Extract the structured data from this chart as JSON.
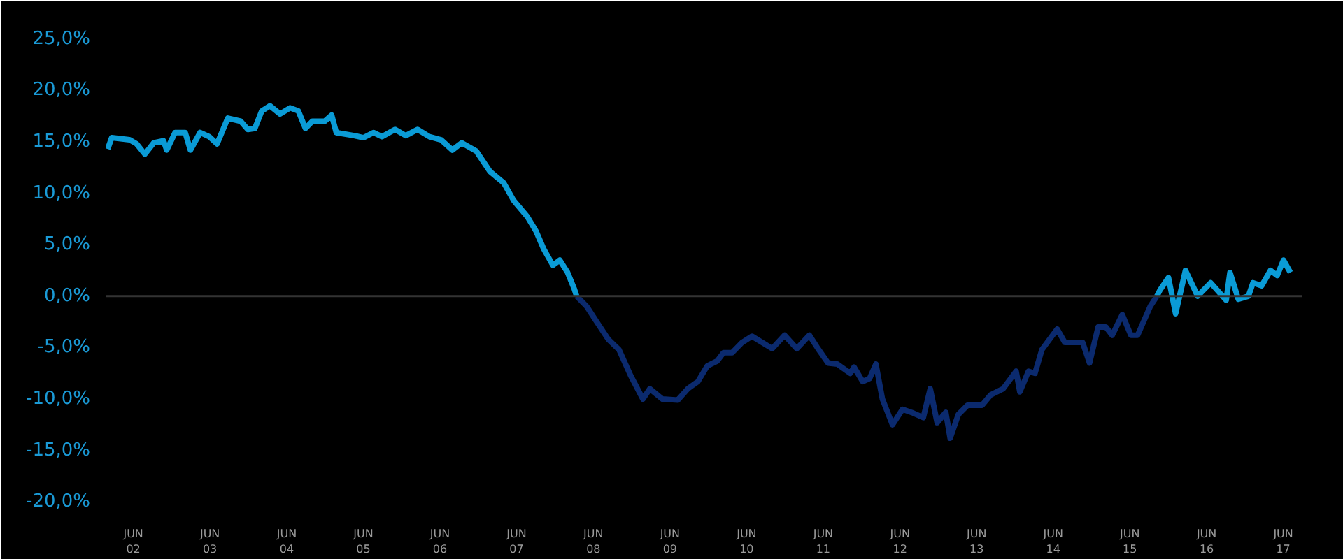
{
  "chart_data": {
    "type": "line",
    "xlim": [
      "2002-01-20",
      "2017-08-28"
    ],
    "ylim": [
      -21,
      26
    ],
    "xticks": [
      {
        "value": "2002-06",
        "label": "JUN\n02"
      },
      {
        "value": "2003-06",
        "label": "JUN\n03"
      },
      {
        "value": "2004-06",
        "label": "JUN\n04"
      },
      {
        "value": "2005-06",
        "label": "JUN\n05"
      },
      {
        "value": "2006-06",
        "label": "JUN\n06"
      },
      {
        "value": "2007-06",
        "label": "JUN\n07"
      },
      {
        "value": "2008-06",
        "label": "JUN\n08"
      },
      {
        "value": "2009-06",
        "label": "JUN\n09"
      },
      {
        "value": "2010-06",
        "label": "JUN\n10"
      },
      {
        "value": "2011-06",
        "label": "JUN\n11"
      },
      {
        "value": "2012-06",
        "label": "JUN\n12"
      },
      {
        "value": "2013-06",
        "label": "JUN\n13"
      },
      {
        "value": "2014-06",
        "label": "JUN\n14"
      },
      {
        "value": "2015-06",
        "label": "JUN\n15"
      },
      {
        "value": "2016-06",
        "label": "JUN\n16"
      },
      {
        "value": "2017-06",
        "label": "JUN\n17"
      }
    ],
    "yticks": [
      {
        "value": -20,
        "label": "-20,0%"
      },
      {
        "value": -15,
        "label": "-15,0%"
      },
      {
        "value": -10,
        "label": "-10,0%"
      },
      {
        "value": -5,
        "label": "-5,0%"
      },
      {
        "value": 0,
        "label": "0,0%"
      },
      {
        "value": 5,
        "label": "5,0%"
      },
      {
        "value": 10,
        "label": "10,0%"
      },
      {
        "value": 15,
        "label": "15,0%"
      },
      {
        "value": 20,
        "label": "20,0%"
      },
      {
        "value": 25,
        "label": "25,0%"
      }
    ],
    "grid": false,
    "line_style": "solid",
    "ref_lines": [
      {
        "axis": "y",
        "value": 0,
        "color": "#333333"
      }
    ],
    "series": [
      {
        "color": "#0b2a6e",
        "x": [
          "2008-03-13",
          "2008-04-30",
          "2008-06-17",
          "2008-08-11",
          "2008-10-01",
          "2008-11-25",
          "2009-01-23",
          "2009-02-25",
          "2009-04-26",
          "2009-07-08",
          "2009-08-25",
          "2009-10-12",
          "2009-11-25",
          "2010-01-12",
          "2010-02-11",
          "2010-03-24",
          "2010-05-11",
          "2010-06-27",
          "2010-10-01",
          "2010-11-29",
          "2011-01-26",
          "2011-03-27",
          "2011-05-07",
          "2011-06-24",
          "2011-08-07",
          "2011-10-08",
          "2011-10-26",
          "2011-12-06",
          "2012-01-08",
          "2012-02-07",
          "2012-03-09",
          "2012-04-26",
          "2012-06-13",
          "2012-07-26",
          "2012-09-20",
          "2012-10-23",
          "2012-11-25",
          "2013-01-05",
          "2013-01-26",
          "2013-03-06",
          "2013-04-19",
          "2013-06-27",
          "2013-08-07",
          "2013-10-05",
          "2013-12-06",
          "2013-12-24",
          "2014-02-03",
          "2014-03-06",
          "2014-04-08",
          "2014-06-20",
          "2014-07-26",
          "2014-10-19",
          "2014-11-21",
          "2015-01-01",
          "2015-02-07",
          "2015-03-09",
          "2015-04-26",
          "2015-06-06",
          "2015-07-08",
          "2015-09-06",
          "2015-10-08"
        ],
        "values": [
          0,
          -1.0,
          -2.5,
          -4.2,
          -5.2,
          -7.7,
          -10.0,
          -9.0,
          -10.0,
          -10.1,
          -9.0,
          -8.3,
          -6.8,
          -6.3,
          -5.5,
          -5.5,
          -4.5,
          -3.9,
          -5.1,
          -3.8,
          -5.1,
          -3.8,
          -5.1,
          -6.5,
          -6.6,
          -7.5,
          -6.9,
          -8.3,
          -8.0,
          -6.6,
          -10.0,
          -12.5,
          -11.0,
          -11.3,
          -11.8,
          -9.0,
          -12.3,
          -11.3,
          -13.8,
          -11.5,
          -10.6,
          -10.6,
          -9.6,
          -9.0,
          -7.3,
          -9.3,
          -7.3,
          -7.5,
          -5.2,
          -3.2,
          -4.5,
          -4.5,
          -6.5,
          -3.0,
          -3.0,
          -3.8,
          -1.8,
          -3.8,
          -3.8,
          -1.0,
          0
        ]
      },
      {
        "color": "#0a9bd6",
        "x": [
          "2002-01-30",
          "2002-02-18",
          "2002-05-14",
          "2002-06-17",
          "2002-07-26",
          "2002-09-06",
          "2002-10-23",
          "2002-11-07",
          "2002-12-17",
          "2003-02-03",
          "2003-02-28",
          "2003-04-15",
          "2003-05-29",
          "2003-07-05",
          "2003-08-25",
          "2003-10-26",
          "2003-11-29",
          "2004-01-01",
          "2004-02-03",
          "2004-03-13",
          "2004-04-30",
          "2004-06-17",
          "2004-07-26",
          "2004-08-29",
          "2004-10-01",
          "2004-11-29",
          "2005-01-01",
          "2005-01-23",
          "2005-04-19",
          "2005-06-02",
          "2005-07-19",
          "2005-08-29",
          "2005-10-30",
          "2005-12-20",
          "2006-02-14",
          "2006-04-12",
          "2006-06-06",
          "2006-07-30",
          "2006-09-13",
          "2006-11-21",
          "2007-01-26",
          "2007-04-01",
          "2007-05-18",
          "2007-07-23",
          "2007-09-02",
          "2007-10-08",
          "2007-11-21",
          "2007-12-24",
          "2008-01-30",
          "2008-03-02",
          "2008-03-13"
        ],
        "values": [
          14.3,
          15.4,
          15.2,
          14.8,
          13.8,
          14.9,
          15.1,
          14.2,
          15.9,
          15.9,
          14.2,
          15.9,
          15.5,
          14.8,
          17.3,
          17.0,
          16.2,
          16.3,
          18.0,
          18.5,
          17.7,
          18.3,
          18.0,
          16.3,
          17.0,
          17.0,
          17.6,
          15.9,
          15.6,
          15.4,
          15.9,
          15.5,
          16.2,
          15.6,
          16.2,
          15.5,
          15.2,
          14.2,
          14.9,
          14.1,
          12.1,
          11.0,
          9.3,
          7.7,
          6.3,
          4.6,
          3.0,
          3.5,
          2.3,
          0.7,
          0
        ]
      },
      {
        "color": "#0a9bd6",
        "x": [
          "2015-10-08",
          "2015-10-23",
          "2015-12-02",
          "2016-01-05",
          "2016-02-21",
          "2016-04-19",
          "2016-06-20",
          "2016-09-02",
          "2016-09-20",
          "2016-10-30",
          "2016-12-17",
          "2017-01-08",
          "2017-02-18",
          "2017-04-01",
          "2017-05-03",
          "2017-06-02",
          "2017-07-05"
        ],
        "values": [
          0,
          0.6,
          1.8,
          -1.7,
          2.5,
          0,
          1.3,
          -0.4,
          2.3,
          -0.3,
          0,
          1.3,
          1.0,
          2.5,
          2.0,
          3.5,
          2.3
        ]
      }
    ]
  }
}
